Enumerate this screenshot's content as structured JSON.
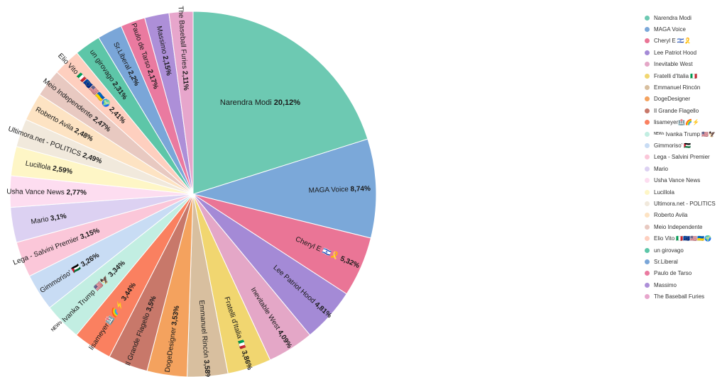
{
  "chart_data": {
    "type": "pie",
    "title": "",
    "legend_position": "right",
    "slices": [
      {
        "label": "Narendra Modi",
        "value": 20.12,
        "display": "20,12%",
        "color": "#6dc9b2"
      },
      {
        "label": "MAGA Voice",
        "value": 8.74,
        "display": "8,74%",
        "color": "#7ba8d9"
      },
      {
        "label": "Cheryl E 🇮🇱🎗️",
        "value": 5.32,
        "display": "5,32%",
        "color": "#ea7596"
      },
      {
        "label": "Lee Patriot Hood",
        "value": 4.81,
        "display": "4,81%",
        "color": "#a48ad6"
      },
      {
        "label": "Inevitable West",
        "value": 4.09,
        "display": "4,09%",
        "color": "#e4a7c7"
      },
      {
        "label": "Fratelli d'Italia 🇮🇹",
        "value": 3.86,
        "display": "3,86%",
        "color": "#f1d670"
      },
      {
        "label": "Emmanuel Rincón",
        "value": 3.58,
        "display": "3,58%",
        "color": "#d8bf9f"
      },
      {
        "label": "DogeDesigner",
        "value": 3.53,
        "display": "3,53%",
        "color": "#f4a25e"
      },
      {
        "label": "Il Grande Flagello",
        "value": 3.5,
        "display": "3,5%",
        "color": "#c8786a"
      },
      {
        "label": "lisameyer🏥🌈⚡",
        "value": 3.44,
        "display": "3,44%",
        "color": "#fa8060"
      },
      {
        "label": "ᴺᴱᵂˢ Ivanka Trump 🇺🇸🦅",
        "value": 3.34,
        "display": "3,34%",
        "color": "#c2eee2"
      },
      {
        "label": "Gimmoriso' 🇵🇸",
        "value": 3.26,
        "display": "3,26%",
        "color": "#c8dcf4"
      },
      {
        "label": "Lega - Salvini Premier",
        "value": 3.15,
        "display": "3,15%",
        "color": "#fbc7d9"
      },
      {
        "label": "Mario",
        "value": 3.1,
        "display": "3,1%",
        "color": "#dcd1f2"
      },
      {
        "label": "Usha Vance News",
        "value": 2.77,
        "display": "2,77%",
        "color": "#fdddf0"
      },
      {
        "label": "Lucillola",
        "value": 2.59,
        "display": "2,59%",
        "color": "#fef6c6"
      },
      {
        "label": "Ultimora.net - POLITICS",
        "value": 2.49,
        "display": "2,49%",
        "color": "#f1e9dc"
      },
      {
        "label": "Roberto Avila",
        "value": 2.48,
        "display": "2,48%",
        "color": "#fde3c3"
      },
      {
        "label": "Meio Independente",
        "value": 2.47,
        "display": "2,47%",
        "color": "#e8c9c1"
      },
      {
        "label": "Elio Vito 🇮🇹🇪🇺🇺🇸🇺🇦🌍",
        "value": 2.41,
        "display": "2,41%",
        "color": "#fecfbf"
      },
      {
        "label": "un girovago",
        "value": 2.31,
        "display": "2,31%",
        "color": "#5dc6a8"
      },
      {
        "label": "Sr.Liberal",
        "value": 2.2,
        "display": "2,2%",
        "color": "#7aa6d8"
      },
      {
        "label": "Paulo de Tarso",
        "value": 2.17,
        "display": "2,17%",
        "color": "#ea7aa0"
      },
      {
        "label": "Massimo",
        "value": 2.15,
        "display": "2,15%",
        "color": "#ad8fd8"
      },
      {
        "label": "The Baseball Furies",
        "value": 2.11,
        "display": "2,11%",
        "color": "#e7a6cc"
      }
    ]
  }
}
